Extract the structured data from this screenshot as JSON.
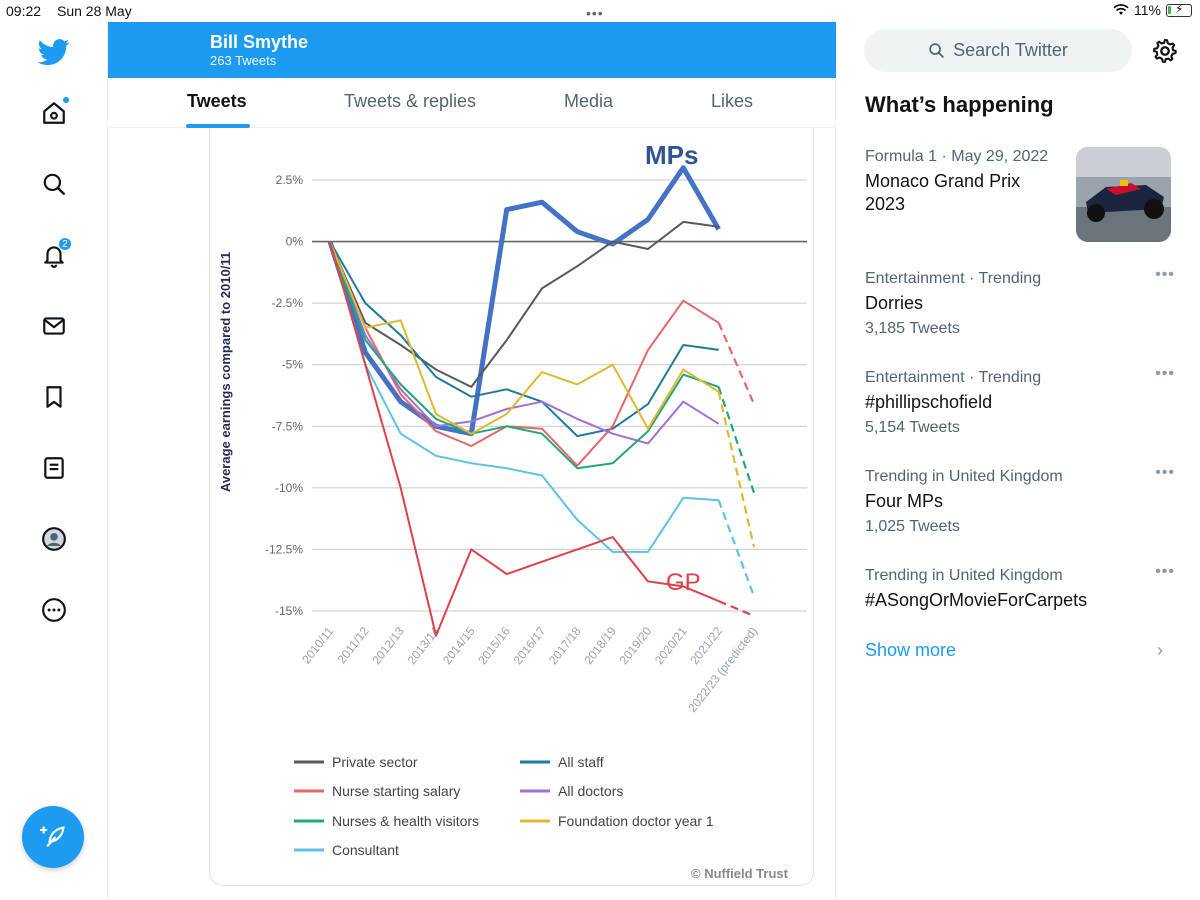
{
  "status_bar": {
    "time": "09:22",
    "date": "Sun 28 May",
    "battery": "11%",
    "multitask": "•••"
  },
  "nav": {
    "items": [
      "twitter-logo",
      "home",
      "explore",
      "notifications",
      "messages",
      "bookmarks",
      "lists",
      "profile",
      "more"
    ],
    "notification_badge": "2"
  },
  "profile": {
    "name": "Bill Smythe",
    "tweet_count": "263 Tweets"
  },
  "tabs": [
    {
      "label": "Tweets",
      "active": true
    },
    {
      "label": "Tweets & replies",
      "active": false
    },
    {
      "label": "Media",
      "active": false
    },
    {
      "label": "Likes",
      "active": false
    }
  ],
  "chart_data": {
    "type": "line",
    "ylabel": "Average earnings compared to 2010/11",
    "categories": [
      "2010/11",
      "2011/12",
      "2012/13",
      "2013/14",
      "2014/15",
      "2015/16",
      "2016/17",
      "2017/18",
      "2018/19",
      "2019/20",
      "2020/21",
      "2021/22",
      "2022/23 (predicted)"
    ],
    "yticks": [
      "2.5%",
      "0%",
      "-2.5%",
      "-5%",
      "-7.5%",
      "-10%",
      "-12.5%",
      "-15%"
    ],
    "ylim": [
      -15,
      2.5
    ],
    "grid": true,
    "annotations": {
      "mps": "MPs",
      "gp": "GP",
      "credit": "© Nuffield Trust"
    },
    "series": [
      {
        "name": "MPs",
        "color": "#4472c4",
        "values": [
          0,
          -4.5,
          -6.5,
          -7.5,
          -7.8,
          1.3,
          1.6,
          0.4,
          -0.1,
          0.9,
          3.0,
          0.5,
          null
        ]
      },
      {
        "name": "Private sector",
        "color": "#555a60",
        "values": [
          0,
          -3.3,
          -4.2,
          -5.2,
          -5.9,
          -4.0,
          -1.9,
          -1.0,
          0.0,
          -0.3,
          0.8,
          0.6,
          null
        ]
      },
      {
        "name": "All staff",
        "color": "#1f7a9c",
        "values": [
          0,
          -2.5,
          -3.8,
          -5.5,
          -6.3,
          -6.0,
          -6.5,
          -7.9,
          -7.6,
          -6.6,
          -4.2,
          -4.4,
          null
        ]
      },
      {
        "name": "Nurse starting salary",
        "color": "#e8656a",
        "values": [
          0,
          -3.5,
          -6.2,
          -7.7,
          -8.3,
          -7.5,
          -7.6,
          -9.1,
          -7.5,
          -4.4,
          -2.4,
          -3.3,
          -6.6
        ]
      },
      {
        "name": "All doctors",
        "color": "#a070d8",
        "values": [
          0,
          -3.8,
          -6.0,
          -7.5,
          -7.3,
          -6.8,
          -6.5,
          -7.2,
          -7.8,
          -8.2,
          -6.5,
          -7.4,
          null
        ]
      },
      {
        "name": "Nurses & health visitors",
        "color": "#20a87a",
        "values": [
          0,
          -4.0,
          -5.8,
          -7.2,
          -7.8,
          -7.5,
          -7.8,
          -9.2,
          -9.0,
          -7.7,
          -5.4,
          -5.9,
          -10.2
        ]
      },
      {
        "name": "Foundation doctor year 1",
        "color": "#e0b830",
        "values": [
          0,
          -3.5,
          -3.2,
          -7.0,
          -7.8,
          -7.0,
          -5.3,
          -5.8,
          -5.0,
          -7.6,
          -5.2,
          -6.1,
          -12.4
        ]
      },
      {
        "name": "Consultant",
        "color": "#5bc2e8",
        "values": [
          0,
          -5.0,
          -7.8,
          -8.7,
          -9.0,
          -9.2,
          -9.5,
          -11.3,
          -12.6,
          -12.6,
          -10.4,
          -10.5,
          -14.4
        ]
      },
      {
        "name": "GP",
        "color": "#e04048",
        "values": [
          0,
          -5.0,
          -10.0,
          -16.0,
          -12.5,
          -13.5,
          -13.0,
          -12.5,
          -12.0,
          -13.8,
          -14.0,
          -14.6,
          -15.2
        ]
      }
    ],
    "legend": [
      "Private sector",
      "All staff",
      "Nurse starting salary",
      "All doctors",
      "Nurses & health visitors",
      "Foundation doctor year 1",
      "Consultant"
    ]
  },
  "search": {
    "placeholder": "Search Twitter"
  },
  "whats_happening": {
    "title": "What’s happening",
    "trends": [
      {
        "meta": "Formula 1 · May 29, 2022",
        "title": "Monaco Grand Prix 2023",
        "count": "",
        "has_image": true
      },
      {
        "meta": "Entertainment · Trending",
        "title": "Dorries",
        "count": "3,185 Tweets"
      },
      {
        "meta": "Entertainment · Trending",
        "title": "#phillipschofield",
        "count": "5,154 Tweets"
      },
      {
        "meta": "Trending in United Kingdom",
        "title": "Four MPs",
        "count": "1,025 Tweets"
      },
      {
        "meta": "Trending in United Kingdom",
        "title": "#ASongOrMovieForCarpets",
        "count": ""
      }
    ],
    "show_more": "Show more",
    "more_icon": "•••"
  }
}
